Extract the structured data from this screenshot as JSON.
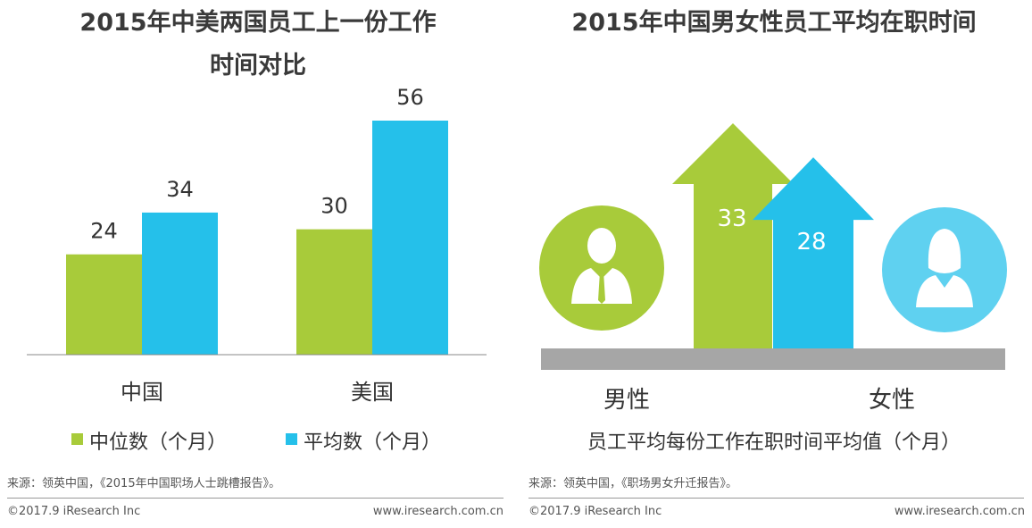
{
  "left": {
    "title_line1": "2015年中美两国员工上一份工作",
    "title_line2": "时间对比",
    "source": "来源：领英中国，《2015年中国职场人士跳槽报告》。",
    "legend": [
      {
        "label": "中位数（个月）",
        "color": "#a8cb3a"
      },
      {
        "label": "平均数（个月）",
        "color": "#25c0ea"
      }
    ]
  },
  "right": {
    "title": "2015年中国男女性员工平均在职时间",
    "male_label": "男性",
    "female_label": "女性",
    "caption": "员工平均每份工作在职时间平均值（个月）",
    "source": "来源：领英中国，《职场男女升迁报告》。",
    "colors": {
      "male": "#a8cb3a",
      "female": "#25c0ea",
      "female_circle": "#5fd1f0",
      "base": "#a6a6a6"
    }
  },
  "footer": {
    "copyright": "©2017.9 iResearch Inc",
    "url": "www.iresearch.com.cn"
  },
  "chart_data": [
    {
      "type": "bar",
      "title": "2015年中美两国员工上一份工作时间对比",
      "categories": [
        "中国",
        "美国"
      ],
      "series": [
        {
          "name": "中位数（个月）",
          "values": [
            24,
            30
          ]
        },
        {
          "name": "平均数（个月）",
          "values": [
            34,
            56
          ]
        }
      ],
      "ylim": [
        0,
        60
      ]
    },
    {
      "type": "bar",
      "title": "2015年中国男女性员工平均在职时间",
      "categories": [
        "男性",
        "女性"
      ],
      "values": [
        33,
        28
      ],
      "ylabel": "员工平均每份工作在职时间平均值（个月）"
    }
  ]
}
